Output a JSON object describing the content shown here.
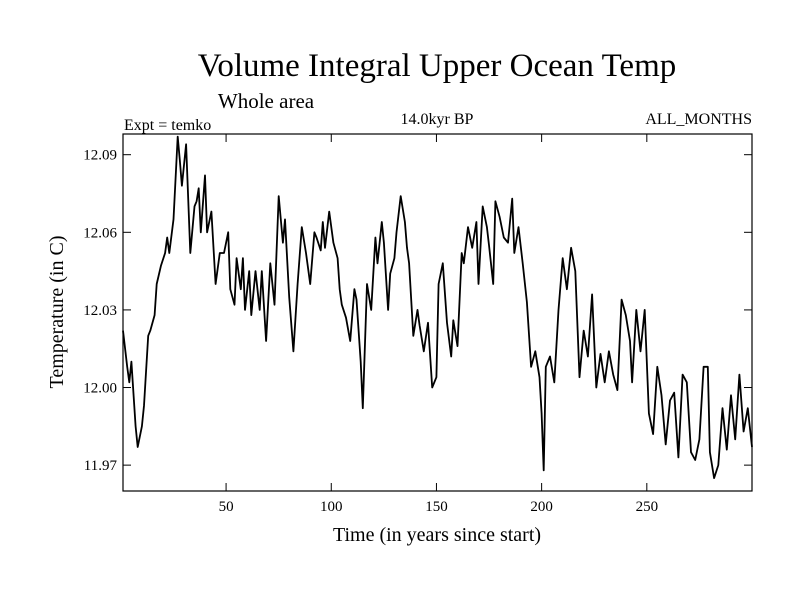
{
  "chart_data": {
    "type": "line",
    "title": "Volume Integral Upper Ocean Temp",
    "subtitle": "Whole area",
    "expt_label": "Expt = temko",
    "period_label": "14.0kyr BP",
    "months_label": "ALL_MONTHS",
    "xlabel": "Time (in years since start)",
    "ylabel": "Temperature (in C)",
    "xlim": [
      1,
      300
    ],
    "ylim": [
      11.96,
      12.098
    ],
    "xticks": [
      50,
      100,
      150,
      200,
      250
    ],
    "xtick_labels": [
      "50",
      "100",
      "150",
      "200",
      "250"
    ],
    "yticks": [
      11.97,
      12.0,
      12.03,
      12.06,
      12.09
    ],
    "ytick_labels": [
      "11.97",
      "12.00",
      "12.03",
      "12.06",
      "12.09"
    ],
    "series": [
      {
        "name": "temperature",
        "x": [
          1,
          3,
          4,
          5,
          7,
          8,
          10,
          11,
          13,
          14,
          16,
          17,
          19,
          21,
          22,
          23,
          25,
          27,
          28,
          29,
          31,
          33,
          35,
          36,
          37,
          38,
          40,
          41,
          43,
          45,
          47,
          49,
          51,
          52,
          54,
          55,
          57,
          58,
          59,
          61,
          62,
          64,
          66,
          67,
          69,
          71,
          73,
          75,
          77,
          78,
          80,
          82,
          84,
          86,
          88,
          90,
          92,
          93,
          95,
          96,
          97,
          99,
          101,
          103,
          104,
          105,
          107,
          109,
          111,
          112,
          114,
          115,
          117,
          119,
          121,
          122,
          124,
          125,
          127,
          128,
          130,
          131,
          133,
          135,
          136,
          137,
          139,
          141,
          142,
          144,
          146,
          148,
          150,
          151,
          153,
          155,
          157,
          158,
          160,
          162,
          163,
          165,
          167,
          169,
          170,
          172,
          174,
          175,
          177,
          178,
          180,
          182,
          184,
          186,
          187,
          189,
          191,
          193,
          195,
          197,
          199,
          200,
          201,
          202,
          204,
          206,
          208,
          210,
          212,
          214,
          216,
          218,
          220,
          222,
          224,
          226,
          228,
          230,
          232,
          234,
          236,
          238,
          240,
          242,
          243,
          245,
          247,
          249,
          251,
          253,
          255,
          257,
          259,
          261,
          263,
          265,
          267,
          269,
          271,
          273,
          275,
          277,
          279,
          280,
          282,
          284,
          286,
          288,
          290,
          292,
          294,
          296,
          298,
          300
        ],
        "values": [
          12.022,
          12.008,
          12.002,
          12.01,
          11.985,
          11.977,
          11.985,
          11.993,
          12.02,
          12.022,
          12.028,
          12.04,
          12.047,
          12.052,
          12.058,
          12.052,
          12.065,
          12.097,
          12.088,
          12.078,
          12.094,
          12.052,
          12.07,
          12.072,
          12.077,
          12.06,
          12.082,
          12.06,
          12.068,
          12.04,
          12.052,
          12.052,
          12.06,
          12.038,
          12.032,
          12.05,
          12.038,
          12.05,
          12.03,
          12.045,
          12.028,
          12.045,
          12.03,
          12.045,
          12.018,
          12.048,
          12.032,
          12.074,
          12.056,
          12.065,
          12.035,
          12.014,
          12.04,
          12.062,
          12.052,
          12.04,
          12.06,
          12.058,
          12.053,
          12.064,
          12.054,
          12.068,
          12.056,
          12.05,
          12.038,
          12.032,
          12.027,
          12.018,
          12.038,
          12.034,
          12.01,
          11.992,
          12.04,
          12.03,
          12.058,
          12.048,
          12.064,
          12.056,
          12.03,
          12.044,
          12.05,
          12.06,
          12.074,
          12.064,
          12.054,
          12.048,
          12.02,
          12.03,
          12.024,
          12.014,
          12.025,
          12.0,
          12.004,
          12.04,
          12.048,
          12.025,
          12.012,
          12.026,
          12.016,
          12.052,
          12.048,
          12.062,
          12.054,
          12.064,
          12.04,
          12.07,
          12.062,
          12.055,
          12.04,
          12.072,
          12.066,
          12.058,
          12.056,
          12.073,
          12.052,
          12.062,
          12.048,
          12.033,
          12.008,
          12.014,
          12.004,
          11.99,
          11.968,
          12.008,
          12.012,
          12.002,
          12.03,
          12.05,
          12.038,
          12.054,
          12.045,
          12.004,
          12.022,
          12.012,
          12.036,
          12.0,
          12.013,
          12.002,
          12.014,
          12.005,
          11.999,
          12.034,
          12.028,
          12.018,
          12.002,
          12.03,
          12.014,
          12.03,
          11.99,
          11.982,
          12.008,
          11.997,
          11.978,
          11.995,
          11.998,
          11.973,
          12.005,
          12.002,
          11.975,
          11.972,
          11.98,
          12.008,
          12.008,
          11.975,
          11.965,
          11.97,
          11.992,
          11.976,
          11.997,
          11.98,
          12.005,
          11.983,
          11.992,
          11.977
        ]
      }
    ]
  }
}
